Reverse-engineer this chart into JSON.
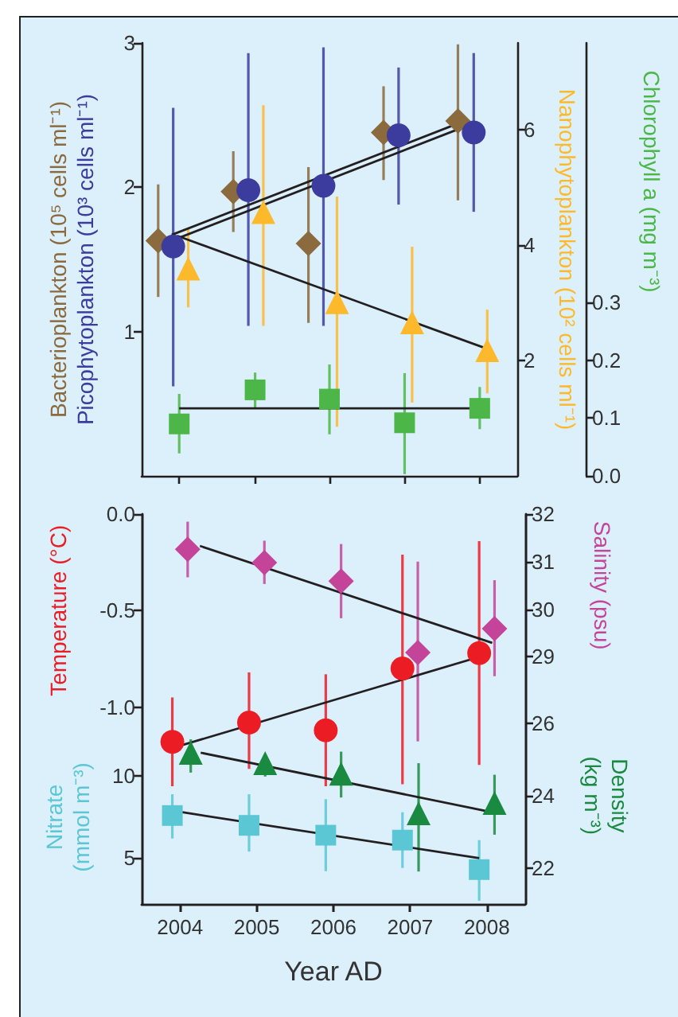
{
  "chart_data": [
    {
      "type": "scatter",
      "xlim": [
        2003.5,
        2008.5
      ],
      "xticks": [
        2004,
        2005,
        2006,
        2007,
        2008
      ],
      "tick_labels": "y",
      "ylim": [
        0,
        3
      ],
      "yticks": [
        1,
        2,
        3
      ],
      "y2lim": [
        0,
        7.5
      ],
      "y2ticks": [
        2,
        4,
        6
      ],
      "y3lim": [
        0,
        0.75
      ],
      "y3ticks": [
        {
          "value": 0,
          "label": "0.0"
        },
        0.1,
        0.2,
        0.3
      ],
      "grid": false,
      "legend": false,
      "series": [
        {
          "name": "Bacterioplankton (10⁵ cells ml⁻¹)",
          "color": "#8b6a3e",
          "marker": "diamond",
          "x": [
            2003.72,
            2004.72,
            2005.72,
            2006.72,
            2007.71
          ],
          "values": [
            1.63,
            1.97,
            1.61,
            2.38,
            2.46
          ],
          "errors": [
            [
              1.24,
              2.02
            ],
            [
              1.69,
              2.25
            ],
            [
              1.06,
              2.14
            ],
            [
              2.05,
              2.7
            ],
            [
              1.91,
              2.99
            ]
          ]
        },
        {
          "name": "Picophytoplankton (10³ cells ml⁻¹)",
          "color": "#3c3c9e",
          "marker": "circle",
          "x": [
            2003.92,
            2004.92,
            2005.92,
            2006.92,
            2007.92
          ],
          "values": [
            1.59,
            1.98,
            2.01,
            2.36,
            2.38
          ],
          "errors": [
            [
              0.62,
              2.55
            ],
            [
              1.04,
              2.93
            ],
            [
              1.04,
              2.97
            ],
            [
              1.88,
              2.83
            ],
            [
              1.83,
              2.93
            ]
          ]
        },
        {
          "name": "Nanophytoplankton (10² cells ml⁻¹)",
          "color": "#fdb92c",
          "marker": "triangle",
          "axis": "y2",
          "x": [
            2004.12,
            2005.12,
            2006.1,
            2007.1,
            2008.1
          ],
          "values": [
            3.59,
            4.57,
            3.01,
            2.66,
            2.18
          ],
          "errors": [
            [
              2.92,
              4.28
            ],
            [
              2.6,
              6.42
            ],
            [
              0.85,
              4.84
            ],
            [
              1.27,
              3.97
            ],
            [
              1.43,
              2.88
            ]
          ]
        },
        {
          "name": "Chlorophyll a (mg m⁻³)",
          "color": "#4cb748",
          "marker": "square",
          "axis": "y3",
          "x": [
            2004,
            2005.01,
            2006,
            2007,
            2008
          ],
          "values": [
            0.09,
            0.149,
            0.133,
            0.092,
            0.117
          ],
          "errors": [
            [
              0.039,
              0.142
            ],
            [
              0.117,
              0.179
            ],
            [
              0.072,
              0.193
            ],
            [
              0.003,
              0.178
            ],
            [
              0.081,
              0.154
            ]
          ]
        },
        {
          "type": "line",
          "color": "#231f20",
          "marker": "none",
          "x": [
            2003.9,
            2007.8
          ],
          "values": [
            1.67,
            2.46
          ]
        },
        {
          "type": "line",
          "color": "#231f20",
          "marker": "none",
          "x": [
            2003.95,
            2007.85
          ],
          "values": [
            1.64,
            2.43
          ]
        },
        {
          "type": "line",
          "color": "#231f20",
          "marker": "none",
          "axis": "y2",
          "x": [
            2003.97,
            2008.1
          ],
          "values": [
            4.16,
            2.2
          ]
        },
        {
          "type": "line",
          "color": "#231f20",
          "marker": "none",
          "axis": "y3",
          "x": [
            2004,
            2008.02
          ],
          "values": [
            0.117,
            0.117
          ]
        }
      ]
    },
    {
      "type": "scatter",
      "xlim": [
        2003.5,
        2008.5
      ],
      "xticks": [
        2004,
        2005,
        2006,
        2007,
        2008
      ],
      "tick_labels": "y",
      "ylim": [
        -2.02,
        0
      ],
      "yticks": [
        {
          "value": 0,
          "label": "0.0"
        },
        {
          "value": -0.5,
          "label": "-0.5"
        },
        {
          "value": -1,
          "label": "-1.0"
        }
      ],
      "y2lim": [
        23.8,
        32
      ],
      "y2ticks": [
        29,
        30,
        31,
        32
      ],
      "grid": false,
      "legend": false,
      "series": [
        {
          "name": "Temperature (°C)",
          "color": "#ec1c24",
          "marker": "circle",
          "x": [
            2003.9,
            2004.9,
            2005.9,
            2006.9,
            2007.9
          ],
          "values": [
            -1.18,
            -1.08,
            -1.12,
            -0.8,
            -0.72
          ],
          "errors": [
            [
              -1.41,
              -0.95
            ],
            [
              -1.32,
              -0.82
            ],
            [
              -1.41,
              -0.83
            ],
            [
              -1.4,
              -0.21
            ],
            [
              -1.3,
              -0.14
            ]
          ]
        },
        {
          "name": "Salinity (psu)",
          "color": "#c4449a",
          "marker": "diamond",
          "axis": "y2",
          "x": [
            2004.1,
            2005.1,
            2006.1,
            2007.1,
            2008.1
          ],
          "values": [
            31.26,
            30.98,
            30.59,
            29.09,
            29.59
          ],
          "errors": [
            [
              30.67,
              31.84
            ],
            [
              30.53,
              31.44
            ],
            [
              29.81,
              31.37
            ],
            [
              27.22,
              31.0
            ],
            [
              28.59,
              30.61
            ]
          ]
        },
        {
          "type": "line",
          "color": "#231f20",
          "marker": "none",
          "x": [
            2004,
            2007.9
          ],
          "values": [
            -1.2,
            -0.74
          ]
        },
        {
          "type": "line",
          "color": "#231f20",
          "marker": "none",
          "axis": "y2",
          "x": [
            2004.26,
            2008.07
          ],
          "values": [
            31.33,
            29.29
          ]
        }
      ]
    },
    {
      "type": "scatter",
      "xlabel": "Year AD",
      "xlim": [
        2003.5,
        2008.5
      ],
      "xticks": [
        2004,
        2005,
        2006,
        2007,
        2008
      ],
      "ylim": [
        2.2,
        26
      ],
      "yticks": [
        5,
        10
      ],
      "y2lim": [
        21,
        31.8
      ],
      "y2ticks": [
        22,
        24,
        26
      ],
      "grid": false,
      "legend": false,
      "series": [
        {
          "name": "Nitrate (mmol m⁻³)",
          "color": "#5bc7d4",
          "marker": "square",
          "x": [
            2003.9,
            2004.9,
            2005.9,
            2006.9,
            2007.9
          ],
          "values": [
            7.6,
            7.0,
            6.4,
            6.1,
            4.3
          ],
          "errors": [
            [
              6.2,
              8.9
            ],
            [
              5.4,
              8.9
            ],
            [
              4.2,
              8.6
            ],
            [
              4.4,
              7.8
            ],
            [
              2.4,
              6.1
            ]
          ]
        },
        {
          "name": "Density (kg m⁻³)",
          "color": "#1a8a40",
          "marker": "triangle",
          "axis": "y2",
          "x": [
            2004.14,
            2005.11,
            2006.1,
            2007.11,
            2008.1
          ],
          "values": [
            25.19,
            24.9,
            24.61,
            23.51,
            23.8
          ],
          "errors": [
            [
              24.64,
              25.56
            ],
            [
              24.53,
              25.12
            ],
            [
              23.95,
              25.22
            ],
            [
              21.9,
              24.9
            ],
            [
              22.92,
              24.58
            ]
          ]
        },
        {
          "type": "line",
          "color": "#231f20",
          "marker": "none",
          "x": [
            2004.03,
            2007.9
          ],
          "values": [
            7.8,
            5.0
          ]
        },
        {
          "type": "line",
          "color": "#231f20",
          "marker": "none",
          "axis": "y2",
          "x": [
            2004.27,
            2008.05
          ],
          "values": [
            25.19,
            23.55
          ]
        }
      ]
    }
  ]
}
